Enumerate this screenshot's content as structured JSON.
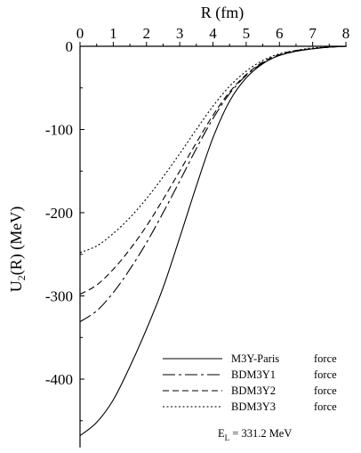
{
  "chart_data": {
    "type": "line",
    "xlabel": "R (fm)",
    "ylabel_main": "U",
    "ylabel_sub": "2",
    "ylabel_rest": "(R) (MeV)",
    "x_ticks": [
      "0",
      "1",
      "2",
      "3",
      "4",
      "5",
      "6",
      "7",
      "8"
    ],
    "y_ticks": [
      "0",
      "-100",
      "-200",
      "-300",
      "-400"
    ],
    "xlim": [
      0,
      8
    ],
    "ylim": [
      -480,
      0
    ],
    "x_axis_position": "top",
    "grid": false,
    "legend_position": "bottom-right",
    "series": [
      {
        "name": "M3Y-Paris force",
        "dash": "solid",
        "x": [
          0,
          0.5,
          1,
          1.5,
          2,
          2.5,
          3,
          3.5,
          4,
          4.5,
          5,
          5.5,
          6,
          6.5,
          7,
          7.5,
          8
        ],
        "y": [
          -468,
          -452,
          -425,
          -385,
          -340,
          -290,
          -230,
          -168,
          -110,
          -66,
          -38,
          -21,
          -11,
          -6,
          -3,
          -1,
          0
        ]
      },
      {
        "name": "BDM3Y1 force",
        "dash": "dashdot",
        "x": [
          0,
          0.5,
          1,
          1.5,
          2,
          2.5,
          3,
          3.5,
          4,
          4.5,
          5,
          5.5,
          6,
          6.5,
          7,
          7.5,
          8
        ],
        "y": [
          -331,
          -318,
          -296,
          -268,
          -236,
          -200,
          -162,
          -123,
          -87,
          -57,
          -35,
          -20,
          -11,
          -6,
          -3,
          -1,
          0
        ]
      },
      {
        "name": "BDM3Y2 force",
        "dash": "dashed",
        "x": [
          0,
          0.5,
          1,
          1.5,
          2,
          2.5,
          3,
          3.5,
          4,
          4.5,
          5,
          5.5,
          6,
          6.5,
          7,
          7.5,
          8
        ],
        "y": [
          -298,
          -287,
          -268,
          -244,
          -216,
          -184,
          -150,
          -116,
          -83,
          -55,
          -34,
          -19,
          -10,
          -5,
          -3,
          -1,
          0
        ]
      },
      {
        "name": "BDM3Y3 force",
        "dash": "dotted",
        "x": [
          0,
          0.5,
          1,
          1.5,
          2,
          2.5,
          3,
          3.5,
          4,
          4.5,
          5,
          5.5,
          6,
          6.5,
          7,
          7.5,
          8
        ],
        "y": [
          -248,
          -240,
          -225,
          -206,
          -183,
          -157,
          -129,
          -100,
          -72,
          -48,
          -30,
          -17,
          -9,
          -5,
          -2,
          -1,
          0
        ]
      }
    ],
    "annotation_main": "E",
    "annotation_sub": "L",
    "annotation_rest": " = 331.2 MeV"
  }
}
